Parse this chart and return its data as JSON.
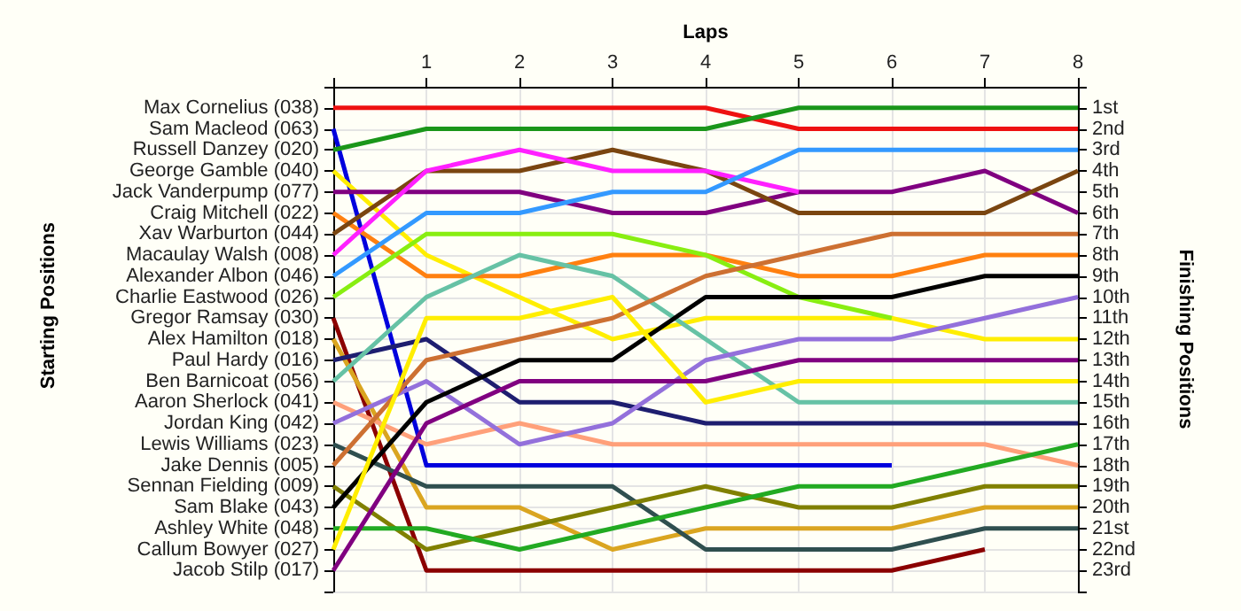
{
  "chart_data": {
    "type": "line",
    "xlabel": "Laps",
    "annotations": [
      "Starting Positions"
    ],
    "y2label": "Finishing Positions",
    "x": [
      0,
      1,
      2,
      3,
      4,
      5,
      6,
      7,
      8
    ],
    "xlim": [
      0,
      8
    ],
    "xticks": [
      1,
      2,
      3,
      4,
      5,
      6,
      7,
      8
    ],
    "y_categories": [
      "Max Cornelius (038)",
      "Sam Macleod (063)",
      "Russell Danzey (020)",
      "George Gamble (040)",
      "Jack Vanderpump (077)",
      "Craig Mitchell (022)",
      "Xav Warburton (044)",
      "Macaulay Walsh (008)",
      "Alexander Albon (046)",
      "Charlie Eastwood (026)",
      "Gregor Ramsay (030)",
      "Alex Hamilton (018)",
      "Paul Hardy (016)",
      "Ben Barnicoat (056)",
      "Aaron Sherlock (041)",
      "Jordan King (042)",
      "Lewis Williams (023)",
      "Jake Dennis (005)",
      "Sennan Fielding (009)",
      "Sam Blake (043)",
      "Ashley White (048)",
      "Callum Bowyer (027)",
      "Jacob Stilp (017)"
    ],
    "y2lim": [
      24,
      0
    ],
    "y2ticks": [
      {
        "value": 1,
        "label": "1st"
      },
      {
        "value": 2,
        "label": "2nd"
      },
      {
        "value": 3,
        "label": "3rd"
      },
      {
        "value": 4,
        "label": "4th"
      },
      {
        "value": 5,
        "label": "5th"
      },
      {
        "value": 6,
        "label": "6th"
      },
      {
        "value": 7,
        "label": "7th"
      },
      {
        "value": 8,
        "label": "8th"
      },
      {
        "value": 9,
        "label": "9th"
      },
      {
        "value": 10,
        "label": "10th"
      },
      {
        "value": 11,
        "label": "11th"
      },
      {
        "value": 12,
        "label": "12th"
      },
      {
        "value": 13,
        "label": "13th"
      },
      {
        "value": 14,
        "label": "14th"
      },
      {
        "value": 15,
        "label": "15th"
      },
      {
        "value": 16,
        "label": "16th"
      },
      {
        "value": 17,
        "label": "17th"
      },
      {
        "value": 18,
        "label": "18th"
      },
      {
        "value": 19,
        "label": "19th"
      },
      {
        "value": 20,
        "label": "20th"
      },
      {
        "value": 21,
        "label": "21st"
      },
      {
        "value": 22,
        "label": "22nd"
      },
      {
        "value": 23,
        "label": "23rd"
      },
      {
        "value": 24,
        "label": null
      }
    ],
    "grid": true,
    "series": [
      {
        "axis": "y2",
        "color": "#ee1111",
        "values": [
          1,
          1,
          1,
          1,
          1,
          2,
          2,
          2,
          2
        ]
      },
      {
        "axis": "y2",
        "color": "#0000dd",
        "values": [
          2,
          18,
          18,
          18,
          18,
          18,
          18,
          null,
          null
        ]
      },
      {
        "axis": "y2",
        "color": "#1a961a",
        "values": [
          3,
          2,
          2,
          2,
          2,
          1,
          1,
          1,
          1
        ]
      },
      {
        "axis": "y2",
        "color": "#ffee00",
        "values": [
          4,
          8,
          10,
          12,
          11,
          11,
          11,
          12,
          12
        ]
      },
      {
        "axis": "y2",
        "color": "#800080",
        "values": [
          5,
          5,
          5,
          6,
          6,
          5,
          5,
          4,
          6
        ]
      },
      {
        "axis": "y2",
        "color": "#ff8010",
        "values": [
          6,
          9,
          9,
          8,
          8,
          9,
          9,
          8,
          8
        ]
      },
      {
        "axis": "y2",
        "color": "#7a4510",
        "values": [
          7,
          4,
          4,
          3,
          4,
          6,
          6,
          6,
          4
        ]
      },
      {
        "axis": "y2",
        "color": "#ff20ff",
        "values": [
          8,
          4,
          3,
          4,
          4,
          5,
          null,
          null,
          null
        ]
      },
      {
        "axis": "y2",
        "color": "#3399ff",
        "values": [
          9,
          6,
          6,
          5,
          5,
          3,
          3,
          3,
          3
        ]
      },
      {
        "axis": "y2",
        "color": "#88ee11",
        "values": [
          10,
          7,
          7,
          7,
          8,
          10,
          11,
          null,
          null
        ]
      },
      {
        "axis": "y2",
        "color": "#8b0000",
        "values": [
          11,
          23,
          23,
          23,
          23,
          23,
          23,
          22,
          null
        ]
      },
      {
        "axis": "y2",
        "color": "#daa520",
        "values": [
          12,
          20,
          20,
          22,
          21,
          21,
          21,
          20,
          20
        ]
      },
      {
        "axis": "y2",
        "color": "#1e1e70",
        "values": [
          13,
          12,
          15,
          15,
          16,
          16,
          16,
          16,
          16
        ]
      },
      {
        "axis": "y2",
        "color": "#66c2a5",
        "values": [
          14,
          10,
          8,
          9,
          12,
          15,
          15,
          15,
          15
        ]
      },
      {
        "axis": "y2",
        "color": "#ffa07a",
        "values": [
          15,
          17,
          16,
          17,
          17,
          17,
          17,
          17,
          18
        ]
      },
      {
        "axis": "y2",
        "color": "#9370db",
        "values": [
          16,
          14,
          17,
          16,
          13,
          12,
          12,
          11,
          10
        ]
      },
      {
        "axis": "y2",
        "color": "#2f4f4f",
        "values": [
          17,
          19,
          19,
          19,
          22,
          22,
          22,
          21,
          21
        ]
      },
      {
        "axis": "y2",
        "color": "#cd7032",
        "values": [
          18,
          13,
          12,
          11,
          9,
          8,
          7,
          7,
          7
        ]
      },
      {
        "axis": "y2",
        "color": "#808000",
        "values": [
          19,
          22,
          21,
          20,
          19,
          20,
          20,
          19,
          19
        ]
      },
      {
        "axis": "y2",
        "color": "#000000",
        "values": [
          20,
          15,
          13,
          13,
          10,
          10,
          10,
          9,
          9
        ]
      },
      {
        "axis": "y2",
        "color": "#22aa22",
        "values": [
          21,
          21,
          22,
          21,
          20,
          19,
          19,
          18,
          17
        ]
      },
      {
        "axis": "y2",
        "color": "#ffee00",
        "values": [
          22,
          11,
          11,
          10,
          15,
          14,
          14,
          14,
          14
        ]
      },
      {
        "axis": "y2",
        "color": "#800080",
        "values": [
          23,
          16,
          14,
          14,
          14,
          13,
          13,
          13,
          13
        ]
      }
    ]
  }
}
